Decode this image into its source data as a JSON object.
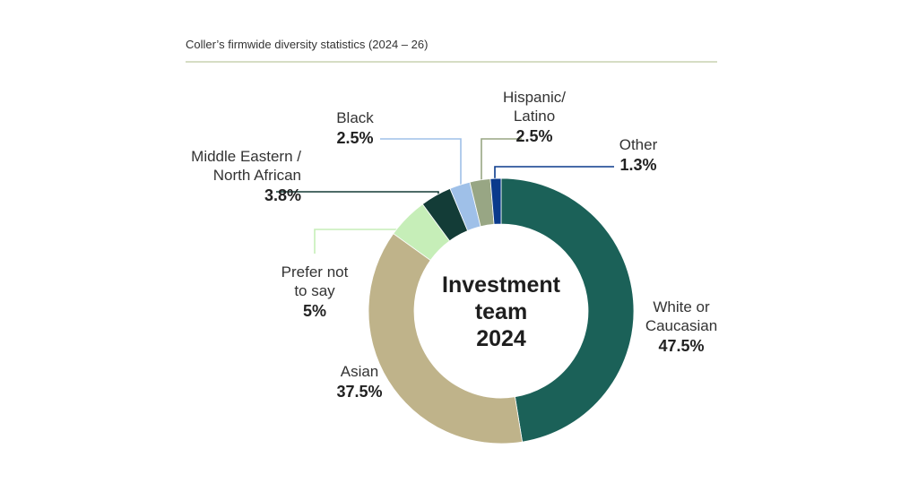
{
  "chart_data": {
    "type": "pie",
    "title": "Coller’s firmwide diversity statistics (2024 – 26)",
    "center_label": [
      "Investment",
      "team",
      "2024"
    ],
    "slices": [
      {
        "label": [
          "White or",
          "Caucasian"
        ],
        "value": 47.5,
        "display": "47.5%",
        "color": "#1b6158"
      },
      {
        "label": [
          "Asian"
        ],
        "value": 37.5,
        "display": "37.5%",
        "color": "#bfb38a"
      },
      {
        "label": [
          "Prefer not",
          "to say"
        ],
        "value": 5,
        "display": "5%",
        "color": "#c6eeb8"
      },
      {
        "label": [
          "Middle Eastern /",
          "North African"
        ],
        "value": 3.8,
        "display": "3.8%",
        "color": "#133c37"
      },
      {
        "label": [
          "Black"
        ],
        "value": 2.5,
        "display": "2.5%",
        "color": "#9fc0e8"
      },
      {
        "label": [
          "Hispanic/",
          "Latino"
        ],
        "value": 2.5,
        "display": "2.5%",
        "color": "#98a684"
      },
      {
        "label": [
          "Other"
        ],
        "value": 1.3,
        "display": "1.3%",
        "color": "#0a3a8c"
      }
    ],
    "title_rule_color": "#c9d2b0"
  }
}
